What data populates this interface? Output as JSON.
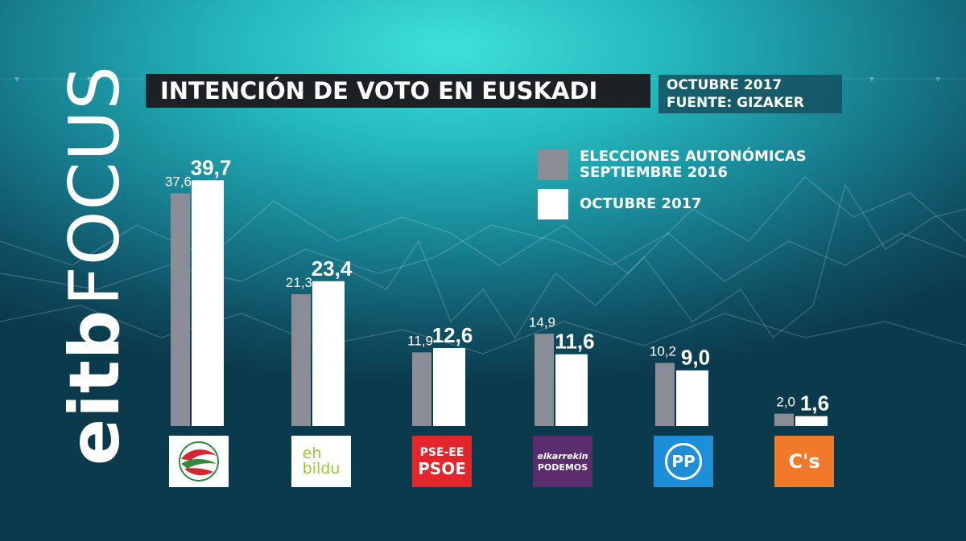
{
  "title": "INTENCIÓN DE VOTO EN EUSKADI",
  "info": {
    "date": "OCTUBRE 2017",
    "source": "FUENTE: GIZAKER"
  },
  "brand": {
    "part1": "eitb",
    "part2": "FOCUS"
  },
  "legend": [
    {
      "label_line1": "ELECCIONES AUTONÓMICAS",
      "label_line2": "SEPTIEMBRE 2016",
      "color": "#8a8d96"
    },
    {
      "label_line1": "OCTUBRE 2017",
      "label_line2": "",
      "color": "#ffffff"
    }
  ],
  "chart_data": {
    "type": "bar",
    "title": "INTENCIÓN DE VOTO EN EUSKADI",
    "categories": [
      "EAJ-PNV",
      "EH Bildu",
      "PSE-EE PSOE",
      "Elkarrekin Podemos",
      "PP",
      "C's"
    ],
    "series": [
      {
        "name": "ELECCIONES AUTONÓMICAS SEPTIEMBRE 2016",
        "values": [
          37.6,
          21.3,
          11.9,
          14.9,
          10.2,
          2.0
        ],
        "labels": [
          "37,6",
          "21,3",
          "11,9",
          "14,9",
          "10,2",
          "2,0"
        ],
        "color": "#8a8d96"
      },
      {
        "name": "OCTUBRE 2017",
        "values": [
          39.7,
          23.4,
          12.6,
          11.6,
          9.0,
          1.6
        ],
        "labels": [
          "39,7",
          "23,4",
          "12,6",
          "11,6",
          "9,0",
          "1,6"
        ],
        "color": "#ffffff"
      }
    ],
    "ylim": [
      0,
      42
    ],
    "grid": false,
    "legend_position": "top-right"
  },
  "logos": [
    {
      "id": "pnv",
      "lines": [],
      "bg": "#ffffff",
      "fg": "#2e8b3c",
      "icon": "pnv-swirl-icon"
    },
    {
      "id": "bildu",
      "lines": [
        "eh",
        "bildu"
      ],
      "bg": "#ffffff",
      "fg": "#9cc43a"
    },
    {
      "id": "psoe",
      "lines": [
        "PSE-EE",
        "PSOE"
      ],
      "bg": "#e2262c",
      "fg": "#ffffff"
    },
    {
      "id": "podemos",
      "lines": [
        "elkarrekin",
        "PODEMOS"
      ],
      "bg": "#5b2d6e",
      "fg": "#ffffff"
    },
    {
      "id": "pp",
      "lines": [
        "PP"
      ],
      "bg": "#1c8fd8",
      "fg": "#ffffff",
      "icon": "pp-bird-icon"
    },
    {
      "id": "cs",
      "lines": [
        "C's"
      ],
      "bg": "#f07a2a",
      "fg": "#ffffff"
    }
  ]
}
